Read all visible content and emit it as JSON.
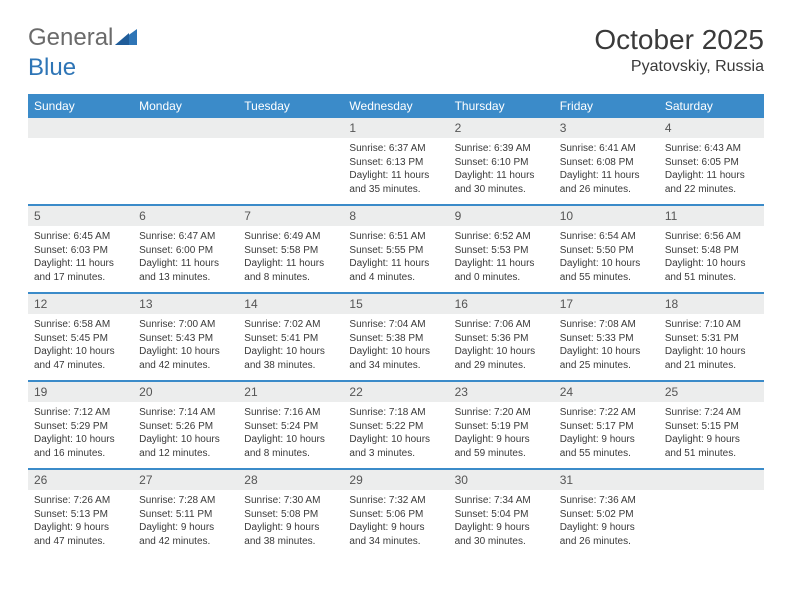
{
  "brand": {
    "part1": "General",
    "part2": "Blue"
  },
  "title": "October 2025",
  "location": "Pyatovskiy, Russia",
  "colors": {
    "header_bg": "#3b8bc9",
    "header_text": "#ffffff",
    "daynum_bg": "#eceded",
    "row_divider": "#3b8bc9",
    "text": "#3a3a3a"
  },
  "days_of_week": [
    "Sunday",
    "Monday",
    "Tuesday",
    "Wednesday",
    "Thursday",
    "Friday",
    "Saturday"
  ],
  "weeks": [
    [
      null,
      null,
      null,
      {
        "n": "1",
        "sunrise": "6:37 AM",
        "sunset": "6:13 PM",
        "daylight": "11 hours and 35 minutes."
      },
      {
        "n": "2",
        "sunrise": "6:39 AM",
        "sunset": "6:10 PM",
        "daylight": "11 hours and 30 minutes."
      },
      {
        "n": "3",
        "sunrise": "6:41 AM",
        "sunset": "6:08 PM",
        "daylight": "11 hours and 26 minutes."
      },
      {
        "n": "4",
        "sunrise": "6:43 AM",
        "sunset": "6:05 PM",
        "daylight": "11 hours and 22 minutes."
      }
    ],
    [
      {
        "n": "5",
        "sunrise": "6:45 AM",
        "sunset": "6:03 PM",
        "daylight": "11 hours and 17 minutes."
      },
      {
        "n": "6",
        "sunrise": "6:47 AM",
        "sunset": "6:00 PM",
        "daylight": "11 hours and 13 minutes."
      },
      {
        "n": "7",
        "sunrise": "6:49 AM",
        "sunset": "5:58 PM",
        "daylight": "11 hours and 8 minutes."
      },
      {
        "n": "8",
        "sunrise": "6:51 AM",
        "sunset": "5:55 PM",
        "daylight": "11 hours and 4 minutes."
      },
      {
        "n": "9",
        "sunrise": "6:52 AM",
        "sunset": "5:53 PM",
        "daylight": "11 hours and 0 minutes."
      },
      {
        "n": "10",
        "sunrise": "6:54 AM",
        "sunset": "5:50 PM",
        "daylight": "10 hours and 55 minutes."
      },
      {
        "n": "11",
        "sunrise": "6:56 AM",
        "sunset": "5:48 PM",
        "daylight": "10 hours and 51 minutes."
      }
    ],
    [
      {
        "n": "12",
        "sunrise": "6:58 AM",
        "sunset": "5:45 PM",
        "daylight": "10 hours and 47 minutes."
      },
      {
        "n": "13",
        "sunrise": "7:00 AM",
        "sunset": "5:43 PM",
        "daylight": "10 hours and 42 minutes."
      },
      {
        "n": "14",
        "sunrise": "7:02 AM",
        "sunset": "5:41 PM",
        "daylight": "10 hours and 38 minutes."
      },
      {
        "n": "15",
        "sunrise": "7:04 AM",
        "sunset": "5:38 PM",
        "daylight": "10 hours and 34 minutes."
      },
      {
        "n": "16",
        "sunrise": "7:06 AM",
        "sunset": "5:36 PM",
        "daylight": "10 hours and 29 minutes."
      },
      {
        "n": "17",
        "sunrise": "7:08 AM",
        "sunset": "5:33 PM",
        "daylight": "10 hours and 25 minutes."
      },
      {
        "n": "18",
        "sunrise": "7:10 AM",
        "sunset": "5:31 PM",
        "daylight": "10 hours and 21 minutes."
      }
    ],
    [
      {
        "n": "19",
        "sunrise": "7:12 AM",
        "sunset": "5:29 PM",
        "daylight": "10 hours and 16 minutes."
      },
      {
        "n": "20",
        "sunrise": "7:14 AM",
        "sunset": "5:26 PM",
        "daylight": "10 hours and 12 minutes."
      },
      {
        "n": "21",
        "sunrise": "7:16 AM",
        "sunset": "5:24 PM",
        "daylight": "10 hours and 8 minutes."
      },
      {
        "n": "22",
        "sunrise": "7:18 AM",
        "sunset": "5:22 PM",
        "daylight": "10 hours and 3 minutes."
      },
      {
        "n": "23",
        "sunrise": "7:20 AM",
        "sunset": "5:19 PM",
        "daylight": "9 hours and 59 minutes."
      },
      {
        "n": "24",
        "sunrise": "7:22 AM",
        "sunset": "5:17 PM",
        "daylight": "9 hours and 55 minutes."
      },
      {
        "n": "25",
        "sunrise": "7:24 AM",
        "sunset": "5:15 PM",
        "daylight": "9 hours and 51 minutes."
      }
    ],
    [
      {
        "n": "26",
        "sunrise": "7:26 AM",
        "sunset": "5:13 PM",
        "daylight": "9 hours and 47 minutes."
      },
      {
        "n": "27",
        "sunrise": "7:28 AM",
        "sunset": "5:11 PM",
        "daylight": "9 hours and 42 minutes."
      },
      {
        "n": "28",
        "sunrise": "7:30 AM",
        "sunset": "5:08 PM",
        "daylight": "9 hours and 38 minutes."
      },
      {
        "n": "29",
        "sunrise": "7:32 AM",
        "sunset": "5:06 PM",
        "daylight": "9 hours and 34 minutes."
      },
      {
        "n": "30",
        "sunrise": "7:34 AM",
        "sunset": "5:04 PM",
        "daylight": "9 hours and 30 minutes."
      },
      {
        "n": "31",
        "sunrise": "7:36 AM",
        "sunset": "5:02 PM",
        "daylight": "9 hours and 26 minutes."
      },
      null
    ]
  ]
}
